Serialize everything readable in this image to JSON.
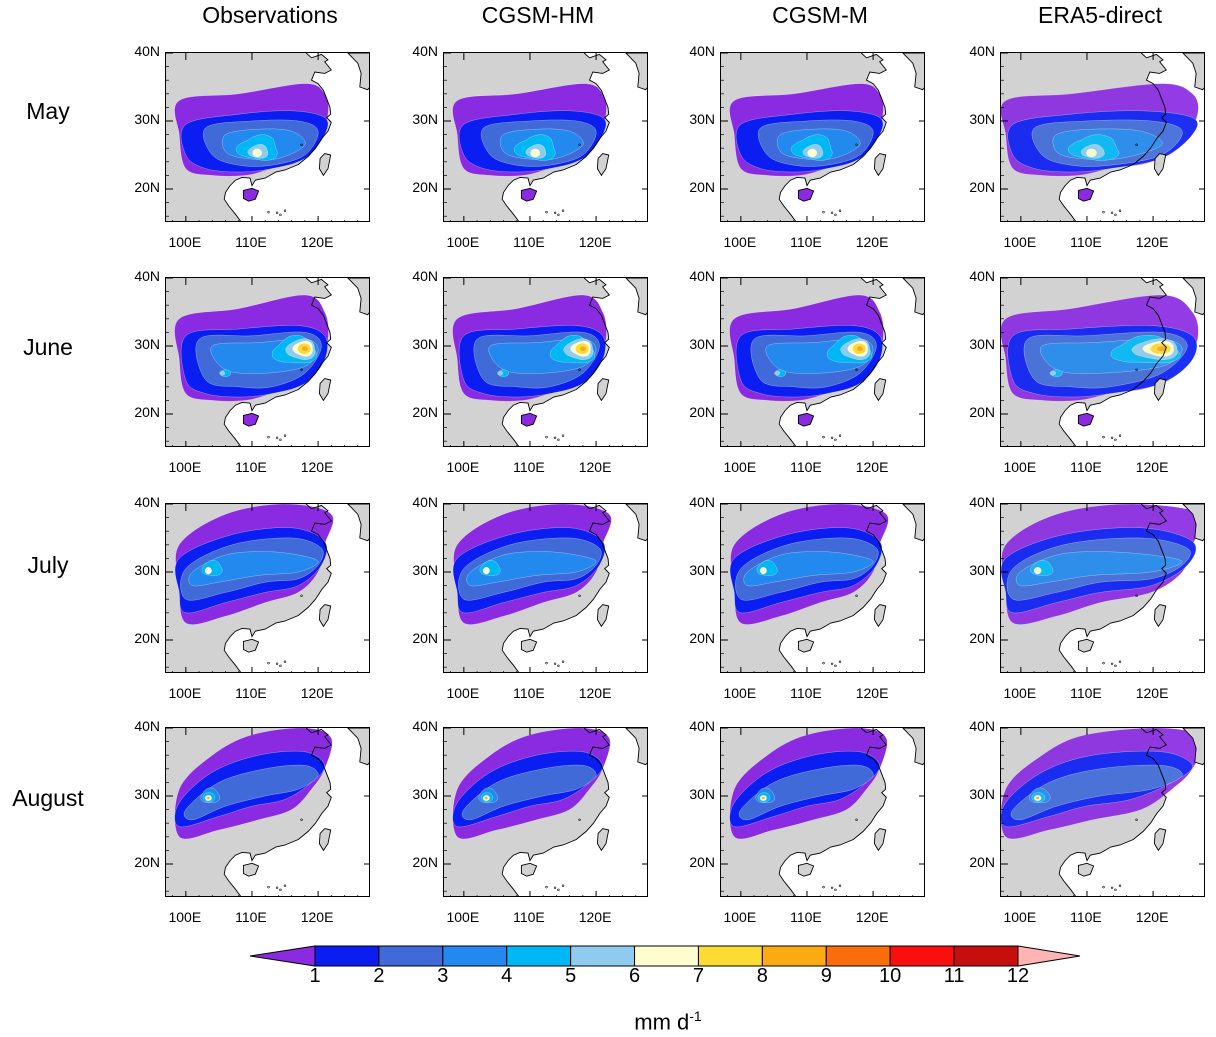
{
  "columns": [
    "Observations",
    "CGSM-HM",
    "CGSM-M",
    "ERA5-direct"
  ],
  "rows": [
    "May",
    "June",
    "July",
    "August"
  ],
  "lat_ticks": [
    "40N",
    "30N",
    "20N"
  ],
  "lon_ticks": [
    "100E",
    "110E",
    "120E"
  ],
  "colorbar": {
    "levels": [
      "1",
      "2",
      "3",
      "4",
      "5",
      "6",
      "7",
      "8",
      "9",
      "10",
      "11",
      "12"
    ],
    "colors": [
      "#8a2be2",
      "#0a1ef2",
      "#3f6ad8",
      "#2389ee",
      "#00b7f5",
      "#8ecbee",
      "#fdfdd0",
      "#fcdc32",
      "#fbaa12",
      "#f96d0a",
      "#fa0f0f",
      "#c70e0e",
      "#ffb4b4"
    ],
    "units_main": "mm d",
    "units_sup": "-1"
  },
  "land_color": "#d2d2d2",
  "ocean_color": "#ffffff"
}
